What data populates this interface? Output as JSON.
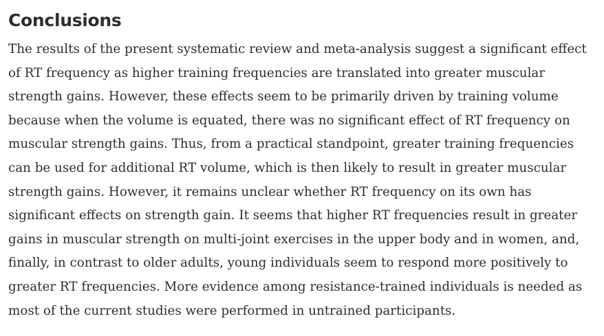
{
  "section": {
    "heading": "Conclusions",
    "lines": [
      "The results of the present systematic review and meta-analysis suggest a significant effect",
      "of RT frequency as higher training frequencies are translated into greater muscular",
      "strength gains. However, these effects seem to be primarily driven by training volume",
      "because when the volume is equated, there was no significant effect of RT frequency on",
      "muscular strength gains. Thus, from a practical standpoint, greater training frequencies",
      "can be used for additional RT volume, which is then likely to result in greater muscular",
      "strength gains. However, it remains unclear whether RT frequency on its own has",
      "significant effects on strength gain. It seems that higher RT frequencies result in greater",
      "gains in muscular strength on multi-joint exercises in the upper body and in women, and,",
      "finally, in contrast to older adults, young individuals seem to respond more positively to",
      "greater RT frequencies. More evidence among resistance-trained individuals is needed as",
      "most of the current studies were performed in untrained participants."
    ]
  }
}
